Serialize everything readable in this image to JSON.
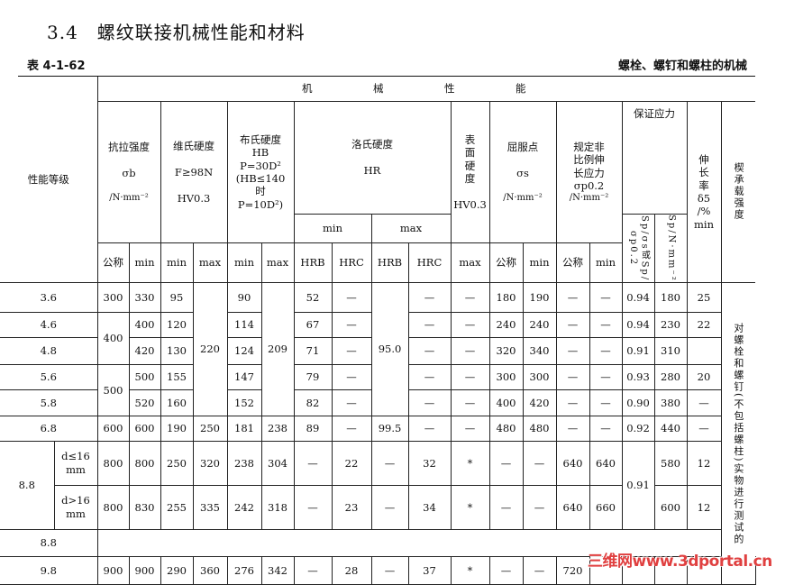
{
  "section_title": "3.4　螺纹联接机械性能和材料",
  "table_no": "表 4-1-62",
  "table_caption": "螺栓、螺钉和螺柱的机械",
  "header": {
    "grade": "性能等级",
    "mech": "机　械　性　能",
    "tensile": [
      "抗拉强度",
      "σb",
      "/N·mm⁻²"
    ],
    "vickers": [
      "维氏硬度",
      "F≥98N",
      "HV0.3"
    ],
    "brinell": [
      "布氏硬度",
      "HB",
      "P=30D²",
      "(HB≤140",
      "时",
      "P=10D²)"
    ],
    "rockwell": [
      "洛氏硬度",
      "HR"
    ],
    "rock_min": "min",
    "rock_max": "max",
    "surface": [
      "表",
      "面",
      "硬",
      "度",
      "HV0.3"
    ],
    "yield": [
      "屈服点",
      "σs",
      "/N·mm⁻²"
    ],
    "proof_nonprop": [
      "规定非",
      "比例伸",
      "长应力",
      "σp0.2",
      "/N·mm⁻²"
    ],
    "proof_load": "保证应力",
    "sp_ratio": "Sp/σs或Sp/σp0.2",
    "sp_value": "Sp/N·mm⁻²",
    "elong": [
      "伸",
      "长",
      "率",
      "δ5",
      "/%",
      "min"
    ],
    "wedge": "楔承载强度",
    "sub": [
      "公称",
      "min",
      "min",
      "max",
      "min",
      "max",
      "HRB",
      "HRC",
      "HRB",
      "HRC",
      "max",
      "公称",
      "min",
      "公称",
      "min"
    ]
  },
  "rows": [
    [
      "3.6",
      "300",
      "330",
      "95",
      "220",
      "90",
      "209",
      "52",
      "—",
      "95.0",
      "—",
      "—",
      "180",
      "190",
      "—",
      "—",
      "0.94",
      "180",
      "25",
      "对螺栓和螺钉(不包括螺柱)实物进行测试的"
    ],
    [
      "4.6",
      "400",
      "400",
      "120",
      "114",
      "67",
      "—",
      "—",
      "—",
      "240",
      "240",
      "—",
      "—",
      "0.94",
      "230",
      "22"
    ],
    [
      "4.8",
      "420",
      "130",
      "124",
      "71",
      "—",
      "—",
      "—",
      "320",
      "340",
      "—",
      "—",
      "0.91",
      "310",
      ""
    ],
    [
      "5.6",
      "500",
      "500",
      "155",
      "147",
      "79",
      "—",
      "—",
      "—",
      "300",
      "300",
      "—",
      "—",
      "0.93",
      "280",
      "20"
    ],
    [
      "5.8",
      "520",
      "160",
      "152",
      "82",
      "—",
      "—",
      "—",
      "400",
      "420",
      "—",
      "—",
      "0.90",
      "380",
      "—"
    ],
    [
      "6.8",
      "600",
      "600",
      "190",
      "250",
      "181",
      "238",
      "89",
      "—",
      "99.5",
      "—",
      "—",
      "480",
      "480",
      "—",
      "—",
      "0.92",
      "440",
      "—"
    ],
    [
      "8.8",
      "d≤16 mm",
      "800",
      "800",
      "250",
      "320",
      "238",
      "304",
      "—",
      "22",
      "—",
      "32",
      "*",
      "—",
      "—",
      "640",
      "640",
      "0.91",
      "580",
      "12"
    ],
    [
      "d>16 mm",
      "800",
      "830",
      "255",
      "335",
      "242",
      "318",
      "—",
      "23",
      "—",
      "34",
      "*",
      "—",
      "—",
      "640",
      "660",
      "600",
      "12"
    ],
    [
      "8.8",
      ""
    ],
    [
      "9.8",
      "900",
      "900",
      "290",
      "360",
      "276",
      "342",
      "—",
      "28",
      "—",
      "37",
      "*",
      "—",
      "—",
      "720",
      "",
      "",
      "",
      "",
      ""
    ]
  ],
  "watermark": "三维网www.3dportal.cn"
}
